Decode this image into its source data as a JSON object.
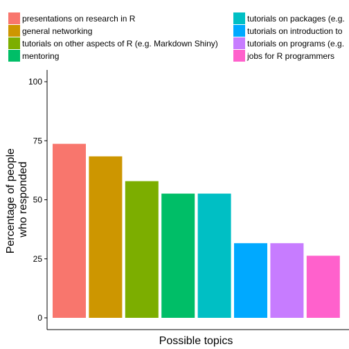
{
  "chart_data": {
    "type": "bar",
    "xlabel": "Possible topics",
    "ylabel_lines": [
      "Percentage of people",
      "who responded"
    ],
    "ylim": [
      0,
      100
    ],
    "yticks": [
      0,
      25,
      50,
      75,
      100
    ],
    "grid": false,
    "legend_position": "top",
    "categories": [
      "presentations on research in R",
      "general networking",
      "tutorials on other aspects of R (e.g. Markdown Shiny)",
      "mentoring",
      "tutorials on packages (e.g.",
      "tutorials on introduction to",
      "tutorials on programs (e.g.",
      "jobs for R programmers"
    ],
    "values": [
      73.7,
      68.4,
      57.9,
      52.6,
      52.6,
      31.6,
      31.6,
      26.3
    ],
    "colors": [
      "#F8766D",
      "#CD9600",
      "#7CAE00",
      "#00BE67",
      "#00BFC4",
      "#00A9FF",
      "#C77CFF",
      "#FF61CC"
    ]
  }
}
